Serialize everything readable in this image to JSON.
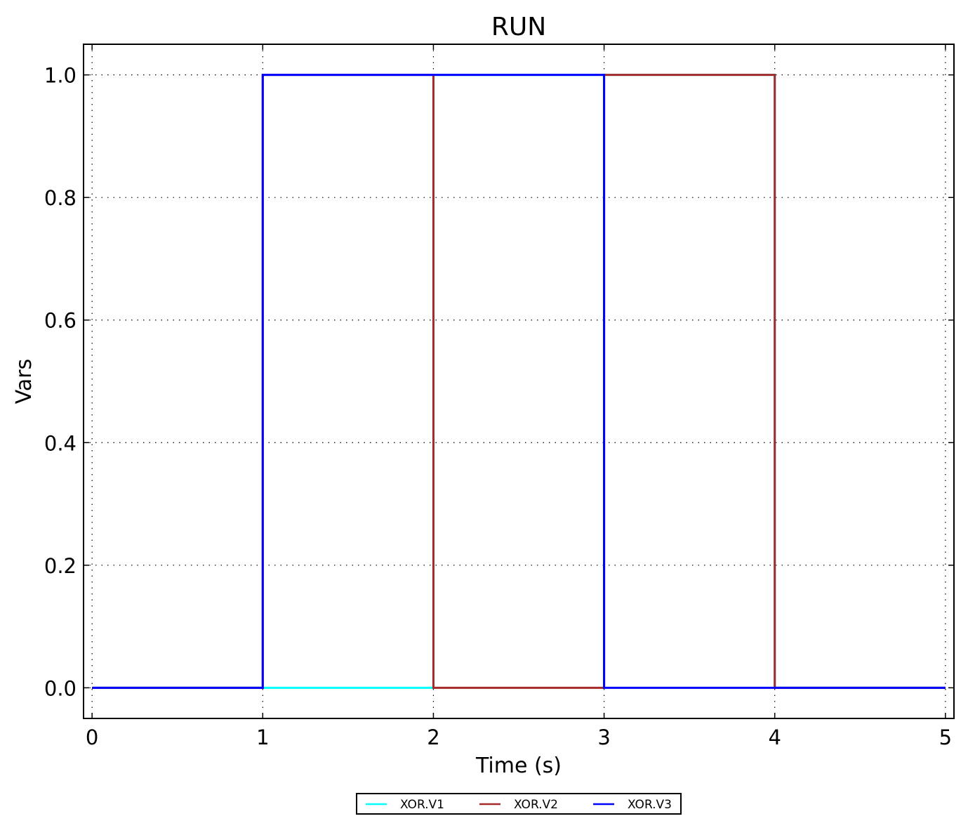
{
  "chart_data": {
    "type": "line",
    "step": true,
    "title": "RUN",
    "xlabel": "Time (s)",
    "ylabel": "Vars",
    "xlim": [
      -0.05,
      5.05
    ],
    "ylim": [
      -0.05,
      1.05
    ],
    "xticks": [
      0,
      1,
      2,
      3,
      4,
      5
    ],
    "xtick_labels": [
      "0",
      "1",
      "2",
      "3",
      "4",
      "5"
    ],
    "yticks": [
      0.0,
      0.2,
      0.4,
      0.6,
      0.8,
      1.0
    ],
    "ytick_labels": [
      "0.0",
      "0.2",
      "0.4",
      "0.6",
      "0.8",
      "1.0"
    ],
    "grid": true,
    "legend_placement": "bottom-center",
    "x": [
      0,
      1,
      2,
      3,
      4,
      5
    ],
    "series": [
      {
        "name": "XOR.V1",
        "color": "#00ffff",
        "values": [
          0,
          0,
          1,
          1,
          0,
          0
        ]
      },
      {
        "name": "XOR.V2",
        "color": "#a52a2a",
        "values": [
          0,
          1,
          0,
          1,
          0,
          0
        ]
      },
      {
        "name": "XOR.V3",
        "color": "#0000ff",
        "values": [
          0,
          1,
          1,
          0,
          0,
          0
        ]
      }
    ]
  }
}
